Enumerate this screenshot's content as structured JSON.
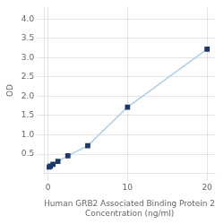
{
  "chart_data": {
    "type": "line",
    "xlabel": [
      "Human GRB2 Associated Binding Protein 2",
      "Concentration (ng/ml)"
    ],
    "ylabel": "OD",
    "series": [
      {
        "name": "OD",
        "color": "#aecde8",
        "colors": [
          "#1a3a6b",
          "#1a3a6b",
          "#1a3a6b",
          "#1a3a6b",
          "#1a3a6b",
          "#1a3a6b",
          "#1a3a6b",
          "#1a3a6b"
        ],
        "marker": "square",
        "x": [
          0.156,
          0.313,
          0.625,
          1.25,
          2.5,
          5,
          10,
          20
        ],
        "values": [
          0.168,
          0.191,
          0.238,
          0.312,
          0.46,
          0.72,
          1.72,
          3.22
        ]
      }
    ],
    "xlim": [
      -0.5,
      21
    ],
    "xticks": [
      0,
      10,
      20
    ],
    "ylim": [
      0.0,
      4.3
    ],
    "yticks": [
      0.5,
      {
        "value": 1.0,
        "label": "1.0"
      },
      1.5,
      {
        "value": 2.0,
        "label": "2.0"
      },
      2.5,
      {
        "value": 3.0,
        "label": "3.0"
      },
      3.5,
      {
        "value": 4.0,
        "label": "4.0"
      }
    ],
    "grid": true
  }
}
